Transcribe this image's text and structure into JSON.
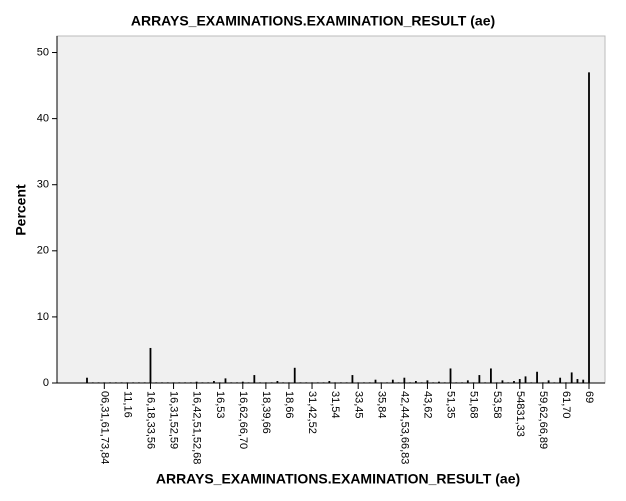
{
  "chart_data": {
    "type": "bar",
    "title": "ARRAYS_EXAMINATIONS.EXAMINATION_RESULT (ae)",
    "x_label": "ARRAYS_EXAMINATIONS.EXAMINATION_RESULT (ae)",
    "y_label": "Percent",
    "categories": [
      null,
      null,
      null,
      "06,31,61,73,84",
      null,
      null,
      null,
      "11,16",
      null,
      null,
      null,
      "16,18,33,56",
      null,
      null,
      null,
      "16,31,52,59",
      null,
      null,
      null,
      "16,42,51,52,68",
      null,
      null,
      null,
      "16,53",
      null,
      null,
      null,
      "16,62,66,70",
      null,
      null,
      null,
      "18,39,66",
      null,
      null,
      null,
      "18,66",
      null,
      null,
      null,
      "31,42,52",
      null,
      null,
      null,
      "31,54",
      null,
      null,
      null,
      "33,45",
      null,
      null,
      null,
      "35,84",
      null,
      null,
      null,
      "42,44,53,66,83",
      null,
      null,
      null,
      "43,62",
      null,
      null,
      null,
      "51,35",
      null,
      null,
      null,
      "51,68",
      null,
      null,
      null,
      "53,58",
      null,
      null,
      null,
      "54831,33",
      null,
      null,
      null,
      "59,62,66,89",
      null,
      null,
      null,
      "61,70",
      null,
      null,
      null,
      "69"
    ],
    "values": [
      0.8,
      0.1,
      0.1,
      0.1,
      0.1,
      0.1,
      0.1,
      0.1,
      0.1,
      0.1,
      0.1,
      5.3,
      0.1,
      0.1,
      0.1,
      0.1,
      0.1,
      0.1,
      0.1,
      0.2,
      0.1,
      0.1,
      0.3,
      0.1,
      0.7,
      0.1,
      0.1,
      0.2,
      0.1,
      1.2,
      0.1,
      0.1,
      0.1,
      0.3,
      0.1,
      0.1,
      2.3,
      0.1,
      0.1,
      0.1,
      0.1,
      0.1,
      0.3,
      0.1,
      0.1,
      0.1,
      1.2,
      0.1,
      0.1,
      0.1,
      0.5,
      0.1,
      0.1,
      0.5,
      0.1,
      0.8,
      0.1,
      0.3,
      0.1,
      0.4,
      0.1,
      0.2,
      0.1,
      2.2,
      0.1,
      0.1,
      0.4,
      0.1,
      1.2,
      0.1,
      2.2,
      0.1,
      0.4,
      0.1,
      0.3,
      0.6,
      1.0,
      0.1,
      1.7,
      0.1,
      0.4,
      0.1,
      0.8,
      0.1,
      1.6,
      0.6,
      0.5,
      47
    ],
    "color": "#000000",
    "ylim": [
      0,
      52.5
    ],
    "yticks": [
      0,
      10,
      20,
      30,
      40,
      50
    ]
  }
}
